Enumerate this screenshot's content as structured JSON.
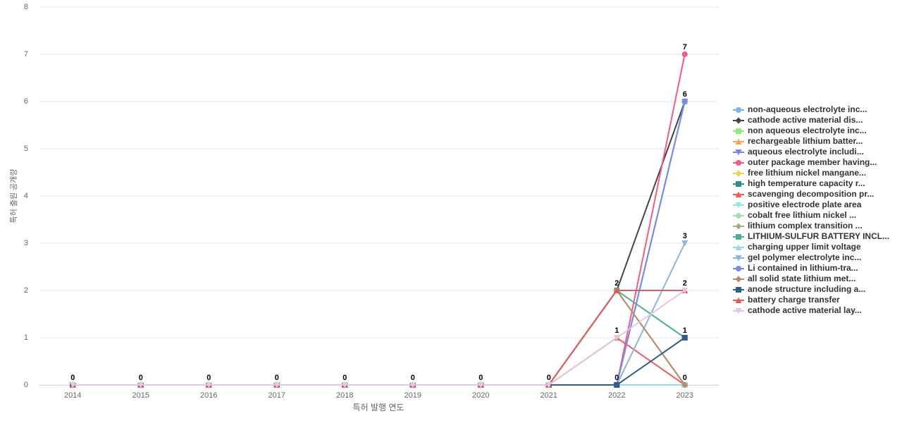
{
  "chart_data": {
    "type": "line",
    "y_label": "특허 출원 공개량",
    "x_label": "특허 발행 연도",
    "categories": [
      "2014",
      "2015",
      "2016",
      "2017",
      "2018",
      "2019",
      "2020",
      "2021",
      "2022",
      "2023"
    ],
    "ylim": [
      0,
      8
    ],
    "yticks": [
      0,
      1,
      2,
      3,
      4,
      5,
      6,
      7,
      8
    ],
    "grid": true,
    "legend": "right",
    "series": [
      {
        "name": "non-aqueous electrolyte inc...",
        "color": "#7cb5ec",
        "marker": "circle",
        "values": [
          0,
          0,
          0,
          0,
          0,
          0,
          0,
          0,
          0,
          0
        ]
      },
      {
        "name": "cathode active material dis...",
        "color": "#434348",
        "marker": "diamond",
        "values": [
          0,
          0,
          0,
          0,
          0,
          0,
          0,
          0,
          2,
          6
        ]
      },
      {
        "name": "non aqueous electrolyte inc...",
        "color": "#90ed7d",
        "marker": "square",
        "values": [
          0,
          0,
          0,
          0,
          0,
          0,
          0,
          0,
          0,
          6
        ]
      },
      {
        "name": "rechargeable lithium batter...",
        "color": "#f7a35c",
        "marker": "triangle",
        "values": [
          0,
          0,
          0,
          0,
          0,
          0,
          0,
          0,
          0,
          0
        ]
      },
      {
        "name": "aqueous electrolyte includi...",
        "color": "#8085e9",
        "marker": "triangle-down",
        "values": [
          0,
          0,
          0,
          0,
          0,
          0,
          0,
          0,
          0,
          6
        ]
      },
      {
        "name": "outer package member having...",
        "color": "#f15c80",
        "marker": "circle",
        "values": [
          0,
          0,
          0,
          0,
          0,
          0,
          0,
          0,
          0,
          7
        ]
      },
      {
        "name": "free lithium nickel mangane...",
        "color": "#e4d354",
        "marker": "diamond",
        "values": [
          0,
          0,
          0,
          0,
          0,
          0,
          0,
          0,
          0,
          0
        ]
      },
      {
        "name": "high temperature capacity r...",
        "color": "#2b908f",
        "marker": "square",
        "values": [
          0,
          0,
          0,
          0,
          0,
          0,
          0,
          0,
          0,
          0
        ]
      },
      {
        "name": "scavenging decomposition pr...",
        "color": "#f45b5b",
        "marker": "triangle",
        "values": [
          0,
          0,
          0,
          0,
          0,
          0,
          0,
          0,
          1,
          0
        ]
      },
      {
        "name": "positive electrode plate area",
        "color": "#91e8e1",
        "marker": "triangle-down",
        "values": [
          0,
          0,
          0,
          0,
          0,
          0,
          0,
          0,
          0,
          0
        ]
      },
      {
        "name": "cobalt free lithium nickel ...",
        "color": "#a8dcc0",
        "marker": "circle",
        "values": [
          0,
          0,
          0,
          0,
          0,
          0,
          0,
          0,
          0,
          0
        ]
      },
      {
        "name": "lithium complex transition ...",
        "color": "#a0b47c",
        "marker": "diamond",
        "values": [
          0,
          0,
          0,
          0,
          0,
          0,
          0,
          0,
          2,
          0
        ]
      },
      {
        "name": "LITHIUM-SULFUR BATTERY INCL...",
        "color": "#4caf93",
        "marker": "square",
        "values": [
          0,
          0,
          0,
          0,
          0,
          0,
          0,
          0,
          2,
          1
        ]
      },
      {
        "name": "charging upper limit voltage",
        "color": "#90dde8",
        "marker": "triangle",
        "values": [
          0,
          0,
          0,
          0,
          0,
          0,
          0,
          0,
          0,
          0
        ]
      },
      {
        "name": "gel polymer electrolyte inc...",
        "color": "#8cb4dc",
        "marker": "triangle-down",
        "values": [
          0,
          0,
          0,
          0,
          0,
          0,
          0,
          0,
          0,
          3
        ]
      },
      {
        "name": "Li contained in lithium-tra...",
        "color": "#7a8be8",
        "marker": "circle",
        "values": [
          0,
          0,
          0,
          0,
          0,
          0,
          0,
          0,
          0,
          6
        ]
      },
      {
        "name": "all solid state lithium met...",
        "color": "#b98a6a",
        "marker": "diamond",
        "values": [
          0,
          0,
          0,
          0,
          0,
          0,
          0,
          0,
          2,
          0
        ]
      },
      {
        "name": "anode structure including a...",
        "color": "#2f5f86",
        "marker": "square",
        "values": [
          0,
          0,
          0,
          0,
          0,
          0,
          0,
          0,
          0,
          1
        ]
      },
      {
        "name": "battery charge transfer",
        "color": "#e05d5d",
        "marker": "triangle",
        "values": [
          0,
          0,
          0,
          0,
          0,
          0,
          0,
          0,
          2,
          2
        ]
      },
      {
        "name": "cathode active material lay...",
        "color": "#e0c8e4",
        "marker": "triangle-down",
        "values": [
          0,
          0,
          0,
          0,
          0,
          0,
          0,
          0,
          1,
          2
        ]
      }
    ]
  }
}
